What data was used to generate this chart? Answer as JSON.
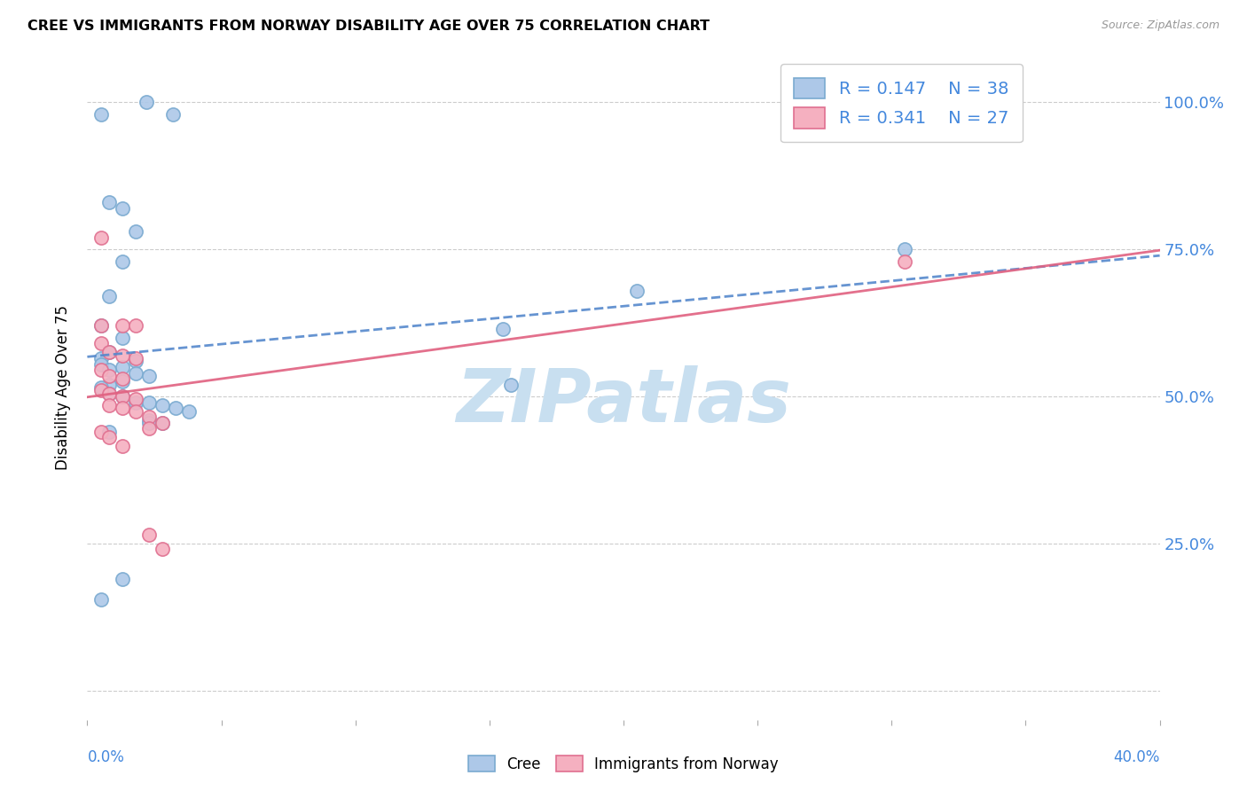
{
  "title": "CREE VS IMMIGRANTS FROM NORWAY DISABILITY AGE OVER 75 CORRELATION CHART",
  "source": "Source: ZipAtlas.com",
  "ylabel": "Disability Age Over 75",
  "ytick_labels": [
    "",
    "25.0%",
    "50.0%",
    "75.0%",
    "100.0%"
  ],
  "ytick_values": [
    0.0,
    0.25,
    0.5,
    0.75,
    1.0
  ],
  "xlim": [
    0.0,
    0.4
  ],
  "ylim": [
    -0.05,
    1.08
  ],
  "plot_ylim": [
    -0.05,
    1.08
  ],
  "cree_color": "#adc8e8",
  "norway_color": "#f5b0c0",
  "cree_edge": "#7aaad0",
  "norway_edge": "#e07090",
  "trend_cree_color": "#5588cc",
  "trend_norway_color": "#e06080",
  "legend_r_cree": "R = 0.147",
  "legend_n_cree": "N = 38",
  "legend_r_norway": "R = 0.341",
  "legend_n_norway": "N = 27",
  "cree_x": [
    0.022,
    0.005,
    0.032,
    0.008,
    0.013,
    0.018,
    0.013,
    0.008,
    0.005,
    0.013,
    0.008,
    0.005,
    0.018,
    0.005,
    0.013,
    0.008,
    0.018,
    0.023,
    0.013,
    0.008,
    0.005,
    0.008,
    0.013,
    0.018,
    0.023,
    0.028,
    0.033,
    0.038,
    0.023,
    0.028,
    0.155,
    0.205,
    0.158,
    0.305,
    0.023,
    0.008,
    0.013,
    0.005
  ],
  "cree_y": [
    1.0,
    0.98,
    0.98,
    0.83,
    0.82,
    0.78,
    0.73,
    0.67,
    0.62,
    0.6,
    0.575,
    0.565,
    0.56,
    0.555,
    0.55,
    0.545,
    0.54,
    0.535,
    0.525,
    0.52,
    0.515,
    0.505,
    0.5,
    0.49,
    0.49,
    0.485,
    0.48,
    0.475,
    0.46,
    0.455,
    0.615,
    0.68,
    0.52,
    0.75,
    0.455,
    0.44,
    0.19,
    0.155
  ],
  "norway_x": [
    0.005,
    0.005,
    0.013,
    0.018,
    0.005,
    0.008,
    0.013,
    0.018,
    0.005,
    0.008,
    0.013,
    0.005,
    0.008,
    0.013,
    0.018,
    0.008,
    0.013,
    0.018,
    0.023,
    0.028,
    0.023,
    0.005,
    0.008,
    0.013,
    0.305,
    0.023,
    0.028
  ],
  "norway_y": [
    0.77,
    0.62,
    0.62,
    0.62,
    0.59,
    0.575,
    0.57,
    0.565,
    0.545,
    0.535,
    0.53,
    0.51,
    0.505,
    0.5,
    0.495,
    0.485,
    0.48,
    0.475,
    0.465,
    0.455,
    0.445,
    0.44,
    0.43,
    0.415,
    0.73,
    0.265,
    0.24
  ],
  "marker_size": 120,
  "watermark_text": "ZIPatlas",
  "watermark_color": "#c8dff0",
  "background_color": "#ffffff",
  "grid_color": "#cccccc",
  "right_label_color": "#4488dd",
  "legend_text_color": "#4488dd"
}
